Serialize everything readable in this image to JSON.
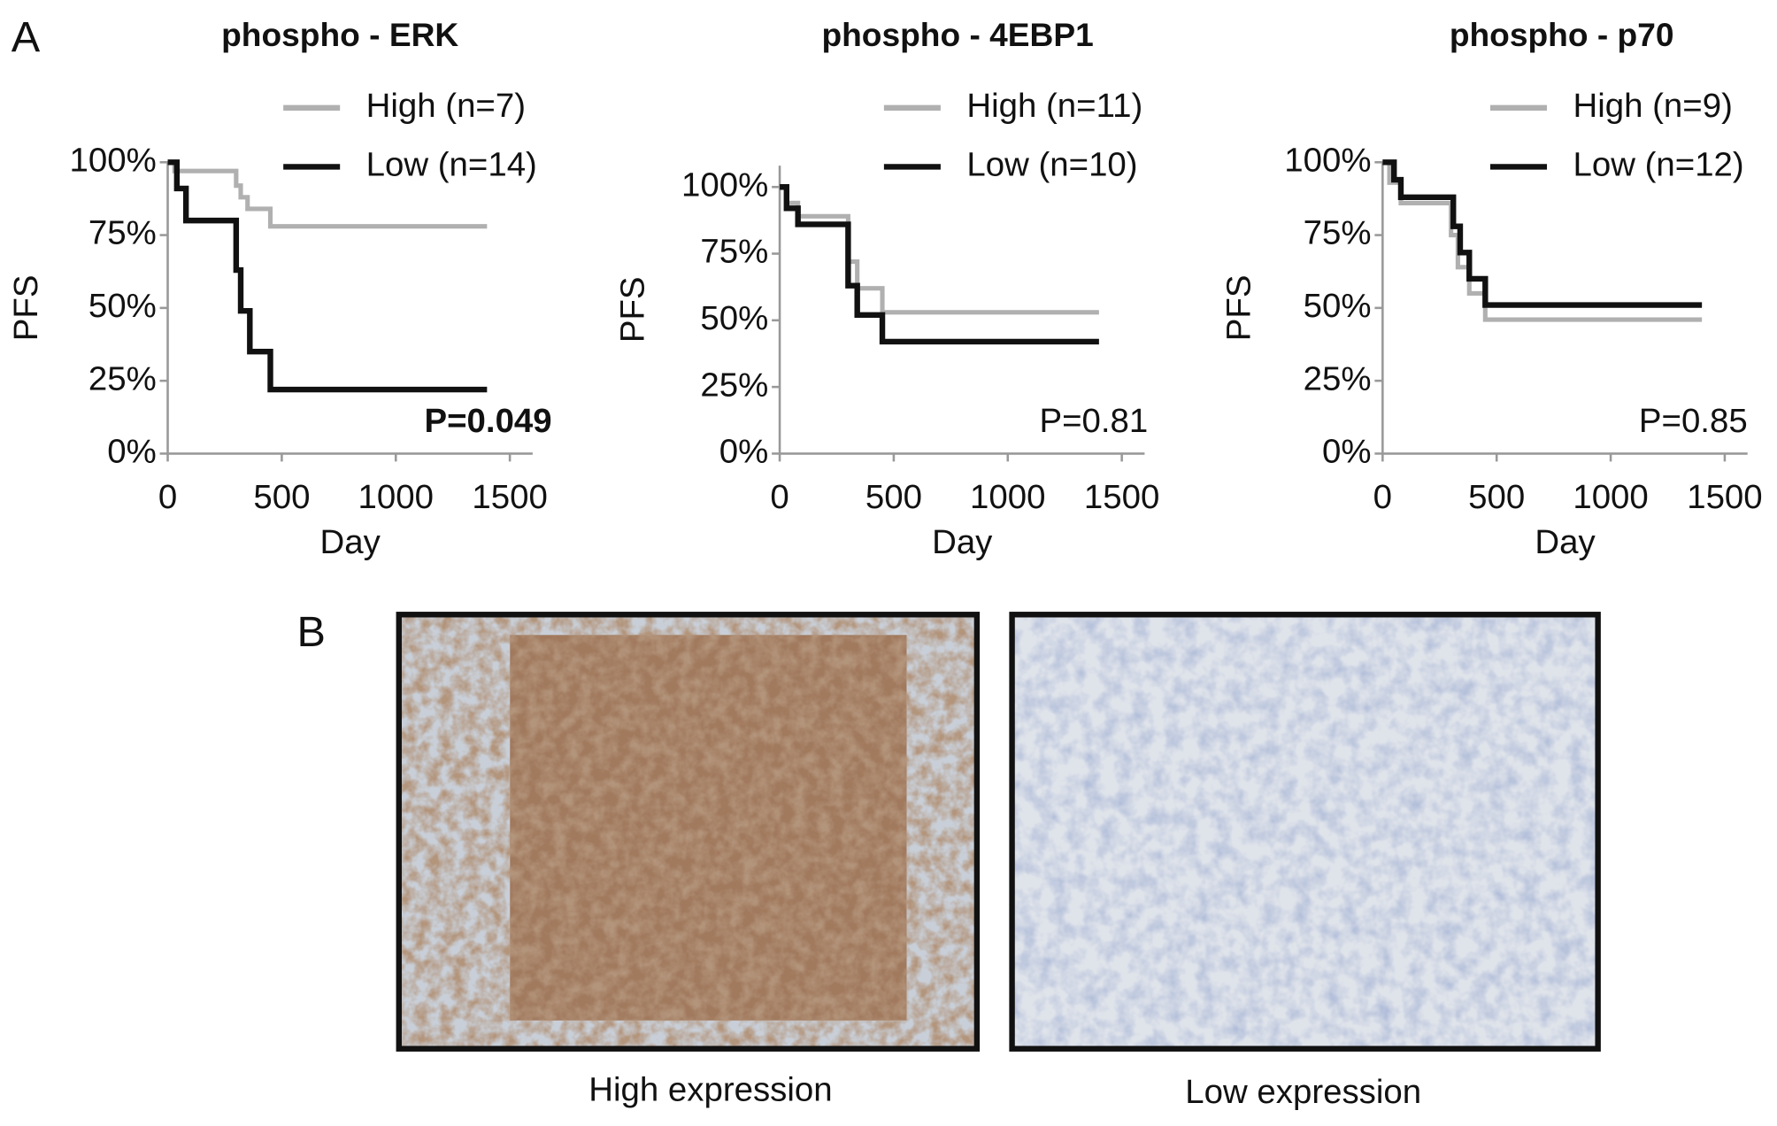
{
  "panel_labels": [
    "A",
    "B"
  ],
  "images": [
    {
      "caption": "High expression"
    },
    {
      "caption": "Low expression"
    }
  ],
  "chart_data": [
    {
      "type": "line",
      "title": "phospho - ERK",
      "x_label": "Day",
      "y_label": "PFS",
      "annotation": "P=0.049",
      "annotation_bold": true,
      "xlim": [
        0,
        1600
      ],
      "xticks": [
        0,
        500,
        1000,
        1500
      ],
      "ylim": [
        0,
        100
      ],
      "yticks": [
        {
          "value": 0,
          "label": "0%"
        },
        {
          "value": 25,
          "label": "25%"
        },
        {
          "value": 50,
          "label": "50%"
        },
        {
          "value": 75,
          "label": "75%"
        },
        {
          "value": 100,
          "label": "100%"
        }
      ],
      "series": [
        {
          "name": "High (n=7)",
          "color": "#b0b0b0",
          "x": [
            0,
            30,
            30,
            300,
            300,
            320,
            320,
            350,
            350,
            450,
            450,
            1400
          ],
          "values": [
            100,
            100,
            97,
            97,
            92,
            92,
            88,
            88,
            84,
            84,
            78,
            78
          ]
        },
        {
          "name": "Low (n=14)",
          "color": "#111111",
          "x": [
            0,
            40,
            40,
            80,
            80,
            300,
            300,
            320,
            320,
            360,
            360,
            450,
            450,
            1400
          ],
          "values": [
            100,
            100,
            91,
            91,
            80,
            80,
            63,
            63,
            49,
            49,
            35,
            35,
            22,
            22
          ]
        }
      ]
    },
    {
      "type": "line",
      "title": "phospho - 4EBP1",
      "x_label": "Day",
      "y_label": "PFS",
      "annotation": "P=0.81",
      "annotation_bold": false,
      "xlim": [
        0,
        1600
      ],
      "xticks": [
        0,
        500,
        1000,
        1500
      ],
      "ylim": [
        0,
        108
      ],
      "yticks": [
        {
          "value": 0,
          "label": "0%"
        },
        {
          "value": 25,
          "label": "25%"
        },
        {
          "value": 50,
          "label": "50%"
        },
        {
          "value": 75,
          "label": "75%"
        },
        {
          "value": 100,
          "label": "100%"
        }
      ],
      "series": [
        {
          "name": "High (n=11)",
          "color": "#b0b0b0",
          "x": [
            0,
            30,
            30,
            80,
            80,
            300,
            300,
            340,
            340,
            450,
            450,
            1400
          ],
          "values": [
            100,
            100,
            94,
            94,
            89,
            89,
            72,
            72,
            62,
            62,
            53,
            53
          ]
        },
        {
          "name": "Low (n=10)",
          "color": "#111111",
          "x": [
            0,
            30,
            30,
            80,
            80,
            300,
            300,
            340,
            340,
            450,
            450,
            1400
          ],
          "values": [
            100,
            100,
            92,
            92,
            86,
            86,
            63,
            63,
            52,
            52,
            42,
            42
          ]
        }
      ]
    },
    {
      "type": "line",
      "title": "phospho - p70",
      "x_label": "Day",
      "y_label": "PFS",
      "annotation": "P=0.85",
      "annotation_bold": false,
      "xlim": [
        0,
        1600
      ],
      "xticks": [
        0,
        500,
        1000,
        1500
      ],
      "ylim": [
        0,
        100
      ],
      "yticks": [
        {
          "value": 0,
          "label": "0%"
        },
        {
          "value": 25,
          "label": "25%"
        },
        {
          "value": 50,
          "label": "50%"
        },
        {
          "value": 75,
          "label": "75%"
        },
        {
          "value": 100,
          "label": "100%"
        }
      ],
      "series": [
        {
          "name": "High (n=9)",
          "color": "#b0b0b0",
          "x": [
            0,
            30,
            30,
            80,
            80,
            300,
            300,
            330,
            330,
            380,
            380,
            450,
            450,
            1400
          ],
          "values": [
            100,
            100,
            93,
            93,
            86,
            86,
            75,
            75,
            64,
            64,
            55,
            55,
            46,
            46
          ]
        },
        {
          "name": "Low (n=12)",
          "color": "#111111",
          "x": [
            0,
            50,
            50,
            80,
            80,
            310,
            310,
            340,
            340,
            380,
            380,
            450,
            450,
            1400
          ],
          "values": [
            100,
            100,
            94,
            94,
            88,
            88,
            78,
            78,
            69,
            69,
            60,
            60,
            51,
            51
          ]
        }
      ]
    }
  ]
}
